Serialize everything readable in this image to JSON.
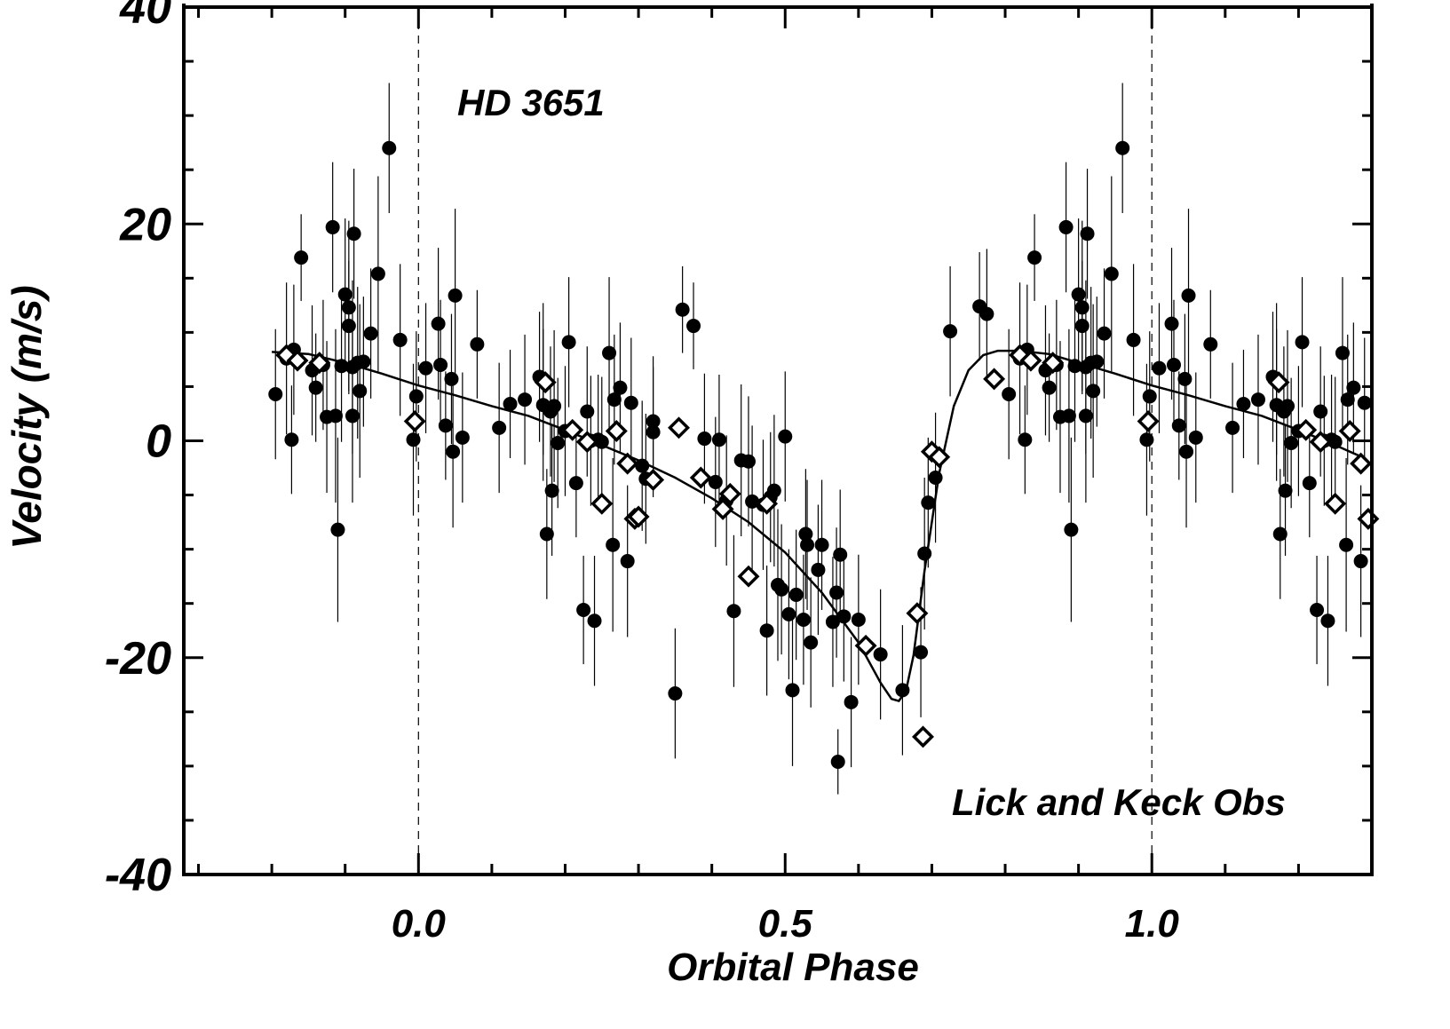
{
  "chart_data": {
    "type": "scatter",
    "title": "",
    "xlabel": "Orbital Phase",
    "ylabel": "Velocity  (m/s)",
    "xlim": [
      -0.32,
      1.3
    ],
    "ylim": [
      -40,
      40
    ],
    "x_ticks": [
      0.0,
      0.5,
      1.0
    ],
    "x_tick_labels": [
      "0.0",
      "0.5",
      "1.0"
    ],
    "y_ticks": [
      40,
      20,
      0,
      -20,
      -40
    ],
    "y_tick_labels": [
      "40",
      "20",
      "0",
      "-20",
      "-40"
    ],
    "dashed_guides_x": [
      0.0,
      1.0
    ],
    "grid": false,
    "legend": "none",
    "annotations": [
      "HD 3651",
      "Lick and Keck Obs"
    ],
    "series": [
      {
        "marker": "filled-circle",
        "points": [
          [
            -0.195,
            4.3,
            6.0
          ],
          [
            -0.18,
            7.6,
            7.0
          ],
          [
            -0.173,
            0.1,
            5.0
          ],
          [
            -0.17,
            8.4,
            6.0
          ],
          [
            -0.16,
            16.9,
            4.0
          ],
          [
            -0.145,
            6.5,
            6.0
          ],
          [
            -0.14,
            4.9,
            5.0
          ],
          [
            -0.13,
            7.0,
            6.0
          ],
          [
            -0.125,
            2.2,
            7.0
          ],
          [
            -0.117,
            19.7,
            6.0
          ],
          [
            -0.113,
            2.3,
            8.0
          ],
          [
            -0.11,
            -8.2,
            8.5
          ],
          [
            -0.105,
            6.9,
            7.0
          ],
          [
            -0.1,
            13.5,
            7.0
          ],
          [
            -0.095,
            12.3,
            8.0
          ],
          [
            -0.095,
            10.6,
            6.0
          ],
          [
            -0.09,
            6.8,
            8.0
          ],
          [
            -0.09,
            2.3,
            8.0
          ],
          [
            -0.088,
            19.1,
            6.0
          ],
          [
            -0.083,
            7.2,
            7.0
          ],
          [
            -0.08,
            4.6,
            8.0
          ],
          [
            -0.075,
            7.3,
            6.0
          ],
          [
            -0.065,
            9.9,
            6.0
          ],
          [
            -0.055,
            15.4,
            9.0
          ],
          [
            -0.04,
            27.0,
            6.0
          ],
          [
            -0.025,
            9.3,
            7.0
          ],
          [
            -0.007,
            0.1,
            7.0
          ],
          [
            -0.003,
            4.1,
            6.0
          ],
          [
            0.01,
            6.7,
            6.0
          ],
          [
            0.027,
            10.8,
            7.0
          ],
          [
            0.03,
            7.0,
            6.0
          ],
          [
            0.037,
            1.4,
            5.0
          ],
          [
            0.045,
            5.7,
            6.0
          ],
          [
            0.047,
            -1.0,
            7.0
          ],
          [
            0.05,
            13.4,
            8.0
          ],
          [
            0.06,
            0.3,
            6.0
          ],
          [
            0.08,
            8.9,
            5.0
          ],
          [
            0.11,
            1.2,
            6.0
          ],
          [
            0.125,
            3.4,
            5.0
          ],
          [
            0.145,
            3.8,
            6.0
          ],
          [
            0.165,
            5.9,
            6.0
          ],
          [
            0.17,
            5.7,
            7.0
          ],
          [
            0.17,
            3.3,
            7.0
          ],
          [
            0.175,
            -8.6,
            6.0
          ],
          [
            0.18,
            2.7,
            6.0
          ],
          [
            0.182,
            -4.6,
            6.0
          ],
          [
            0.185,
            3.2,
            7.0
          ],
          [
            0.19,
            -0.2,
            6.0
          ],
          [
            0.2,
            0.9,
            6.0
          ],
          [
            0.205,
            9.1,
            6.0
          ],
          [
            0.215,
            -3.9,
            5.0
          ],
          [
            0.225,
            -15.6,
            5.0
          ],
          [
            0.23,
            2.7,
            6.0
          ],
          [
            0.235,
            0.0,
            6.0
          ],
          [
            0.24,
            -16.6,
            6.0
          ],
          [
            0.245,
            0.1,
            6.0
          ],
          [
            0.25,
            -0.1,
            6.0
          ],
          [
            0.26,
            8.1,
            7.0
          ],
          [
            0.265,
            -9.6,
            8.0
          ],
          [
            0.267,
            3.8,
            6.0
          ],
          [
            0.275,
            4.9,
            6.0
          ],
          [
            0.285,
            -11.1,
            7.0
          ],
          [
            0.29,
            3.5,
            6.0
          ],
          [
            0.305,
            -2.3,
            6.0
          ],
          [
            0.31,
            -3.5,
            6.0
          ],
          [
            0.32,
            1.8,
            6.0
          ],
          [
            0.32,
            0.8,
            6.0
          ],
          [
            0.35,
            -23.3,
            6.0
          ],
          [
            0.36,
            12.1,
            4.0
          ],
          [
            0.375,
            10.6,
            4.0
          ],
          [
            0.39,
            0.2,
            6.0
          ],
          [
            0.405,
            -3.8,
            6.0
          ],
          [
            0.41,
            0.1,
            6.0
          ],
          [
            0.42,
            -5.5,
            6.0
          ],
          [
            0.43,
            -15.7,
            7.0
          ],
          [
            0.44,
            -1.8,
            7.0
          ],
          [
            0.45,
            -1.9,
            6.0
          ],
          [
            0.455,
            -5.6,
            7.0
          ],
          [
            0.47,
            -5.9,
            6.0
          ],
          [
            0.475,
            -17.5,
            6.0
          ],
          [
            0.48,
            -5.2,
            6.0
          ],
          [
            0.485,
            -4.6,
            7.0
          ],
          [
            0.49,
            -13.3,
            7.0
          ],
          [
            0.495,
            -13.7,
            6.0
          ],
          [
            0.5,
            0.4,
            6.0
          ],
          [
            0.505,
            -16.0,
            6.0
          ],
          [
            0.51,
            -23.0,
            7.0
          ],
          [
            0.515,
            -14.2,
            6.0
          ],
          [
            0.525,
            -16.5,
            6.0
          ],
          [
            0.528,
            -8.6,
            6.0
          ],
          [
            0.53,
            -9.6,
            6.0
          ],
          [
            0.535,
            -18.6,
            6.0
          ],
          [
            0.545,
            -11.9,
            6.0
          ],
          [
            0.55,
            -9.6,
            6.0
          ],
          [
            0.565,
            -16.7,
            6.0
          ],
          [
            0.57,
            -14.0,
            6.0
          ],
          [
            0.572,
            -29.6,
            3.0
          ],
          [
            0.575,
            -10.5,
            6.0
          ],
          [
            0.58,
            -16.2,
            6.0
          ],
          [
            0.59,
            -24.1,
            6.0
          ],
          [
            0.6,
            -16.5,
            6.0
          ],
          [
            0.63,
            -19.7,
            6.0
          ],
          [
            0.66,
            -23.0,
            6.0
          ],
          [
            0.685,
            -19.5,
            6.0
          ],
          [
            0.69,
            -10.4,
            7.0
          ],
          [
            0.695,
            -5.7,
            6.0
          ],
          [
            0.705,
            -3.4,
            6.0
          ],
          [
            0.725,
            10.1,
            6.0
          ],
          [
            0.765,
            12.4,
            5.0
          ],
          [
            0.775,
            11.7,
            6.0
          ]
        ],
        "note": "points are [phase, velocity, error_bar_half_length]; the pattern repeats at phase + 1"
      },
      {
        "marker": "open-diamond",
        "points": [
          [
            -0.18,
            7.9
          ],
          [
            -0.165,
            7.4
          ],
          [
            -0.135,
            7.2
          ],
          [
            -0.005,
            1.8
          ],
          [
            0.173,
            5.4
          ],
          [
            0.21,
            1.0
          ],
          [
            0.23,
            -0.1
          ],
          [
            0.25,
            -5.8
          ],
          [
            0.27,
            0.9
          ],
          [
            0.285,
            -2.1
          ],
          [
            0.295,
            -7.2
          ],
          [
            0.3,
            -7.0
          ],
          [
            0.32,
            -3.6
          ],
          [
            0.355,
            1.2
          ],
          [
            0.385,
            -3.4
          ],
          [
            0.415,
            -6.3
          ],
          [
            0.425,
            -4.9
          ],
          [
            0.45,
            -12.5
          ],
          [
            0.475,
            -5.8
          ],
          [
            0.61,
            -18.9
          ],
          [
            0.68,
            -15.9
          ],
          [
            0.688,
            -27.3
          ],
          [
            0.7,
            -1.0
          ],
          [
            0.71,
            -1.5
          ],
          [
            0.785,
            5.7
          ]
        ],
        "note": "points are [phase, velocity]; the pattern repeats at phase + 1"
      },
      {
        "marker": "line",
        "points": [
          [
            -0.2,
            8.2
          ],
          [
            -0.15,
            8.0
          ],
          [
            -0.1,
            7.2
          ],
          [
            -0.05,
            6.2
          ],
          [
            0.0,
            5.1
          ],
          [
            0.05,
            4.2
          ],
          [
            0.1,
            3.2
          ],
          [
            0.15,
            2.3
          ],
          [
            0.2,
            1.0
          ],
          [
            0.25,
            -0.4
          ],
          [
            0.3,
            -1.8
          ],
          [
            0.35,
            -3.4
          ],
          [
            0.4,
            -5.3
          ],
          [
            0.45,
            -7.5
          ],
          [
            0.5,
            -10.3
          ],
          [
            0.55,
            -14.0
          ],
          [
            0.6,
            -18.6
          ],
          [
            0.63,
            -22.3
          ],
          [
            0.645,
            -23.8
          ],
          [
            0.655,
            -24.0
          ],
          [
            0.665,
            -23.0
          ],
          [
            0.675,
            -19.8
          ],
          [
            0.69,
            -12.0
          ],
          [
            0.71,
            -3.0
          ],
          [
            0.73,
            3.2
          ],
          [
            0.75,
            6.5
          ],
          [
            0.77,
            7.9
          ],
          [
            0.79,
            8.3
          ],
          [
            0.82,
            8.3
          ],
          [
            0.86,
            8.0
          ],
          [
            0.9,
            7.2
          ],
          [
            0.95,
            6.2
          ],
          [
            1.0,
            5.1
          ],
          [
            1.05,
            4.2
          ],
          [
            1.1,
            3.2
          ],
          [
            1.15,
            2.3
          ],
          [
            1.2,
            1.0
          ],
          [
            1.25,
            -0.4
          ],
          [
            1.29,
            -1.6
          ]
        ]
      }
    ]
  }
}
